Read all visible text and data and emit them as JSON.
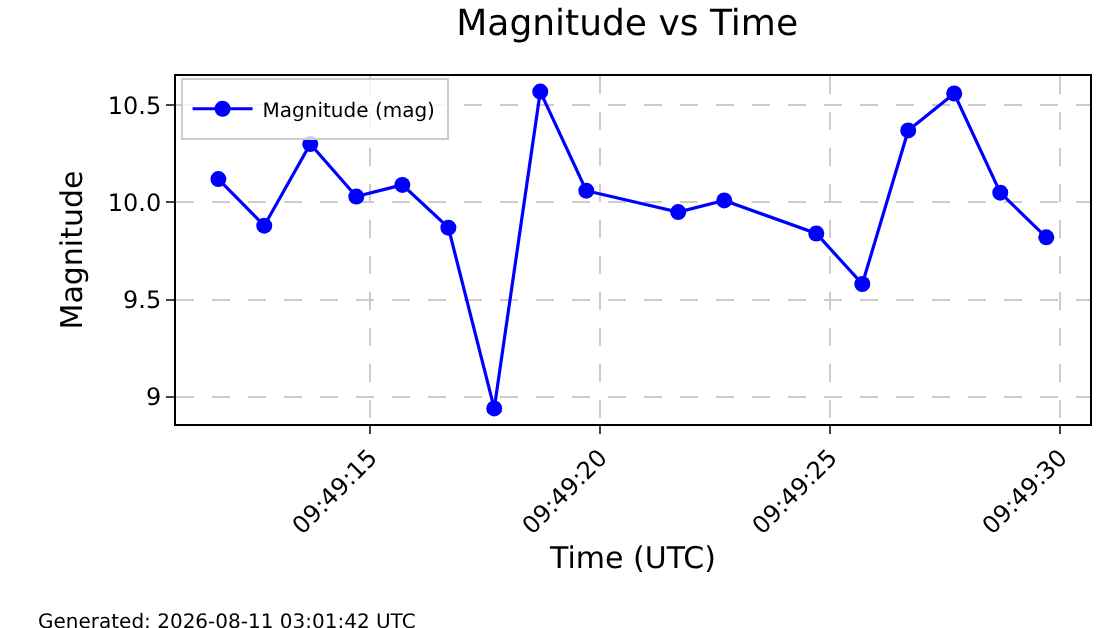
{
  "chart_data": {
    "type": "line",
    "title": "Magnitude vs Time",
    "xlabel": "Time (UTC)",
    "ylabel": "Magnitude",
    "x": [
      9.819917,
      9.820194,
      9.820472,
      9.82075,
      9.821028,
      9.821306,
      9.821583,
      9.821861,
      9.822139,
      9.822694,
      9.822972,
      9.823528,
      9.823806,
      9.824083,
      9.824361,
      9.824639,
      9.824917
    ],
    "series": [
      {
        "name": "Magnitude (mag)",
        "color": "#0000ff",
        "values": [
          10.12,
          9.88,
          10.3,
          10.03,
          10.09,
          9.87,
          8.94,
          10.57,
          10.06,
          9.95,
          10.01,
          9.84,
          9.58,
          10.37,
          10.56,
          10.05,
          9.82
        ]
      }
    ],
    "xlim": [
      9.819661,
      9.825181
    ],
    "xticks": [
      {
        "value": 9.820833,
        "label": "09:49:15"
      },
      {
        "value": 9.822222,
        "label": "09:49:20"
      },
      {
        "value": 9.823611,
        "label": "09:49:25"
      },
      {
        "value": 9.825,
        "label": "09:49:30"
      }
    ],
    "ylim": [
      8.86,
      10.65
    ],
    "yticks": [
      9.0,
      {
        "value": 9.5,
        "label": "9.5"
      },
      {
        "value": 10.0,
        "label": "10.0"
      },
      10.5
    ],
    "grid": true,
    "legend": "top left",
    "marker": "circle",
    "line_style": "solid",
    "annotations": [
      "Generated: 2026-08-11 03:01:42 UTC"
    ]
  }
}
